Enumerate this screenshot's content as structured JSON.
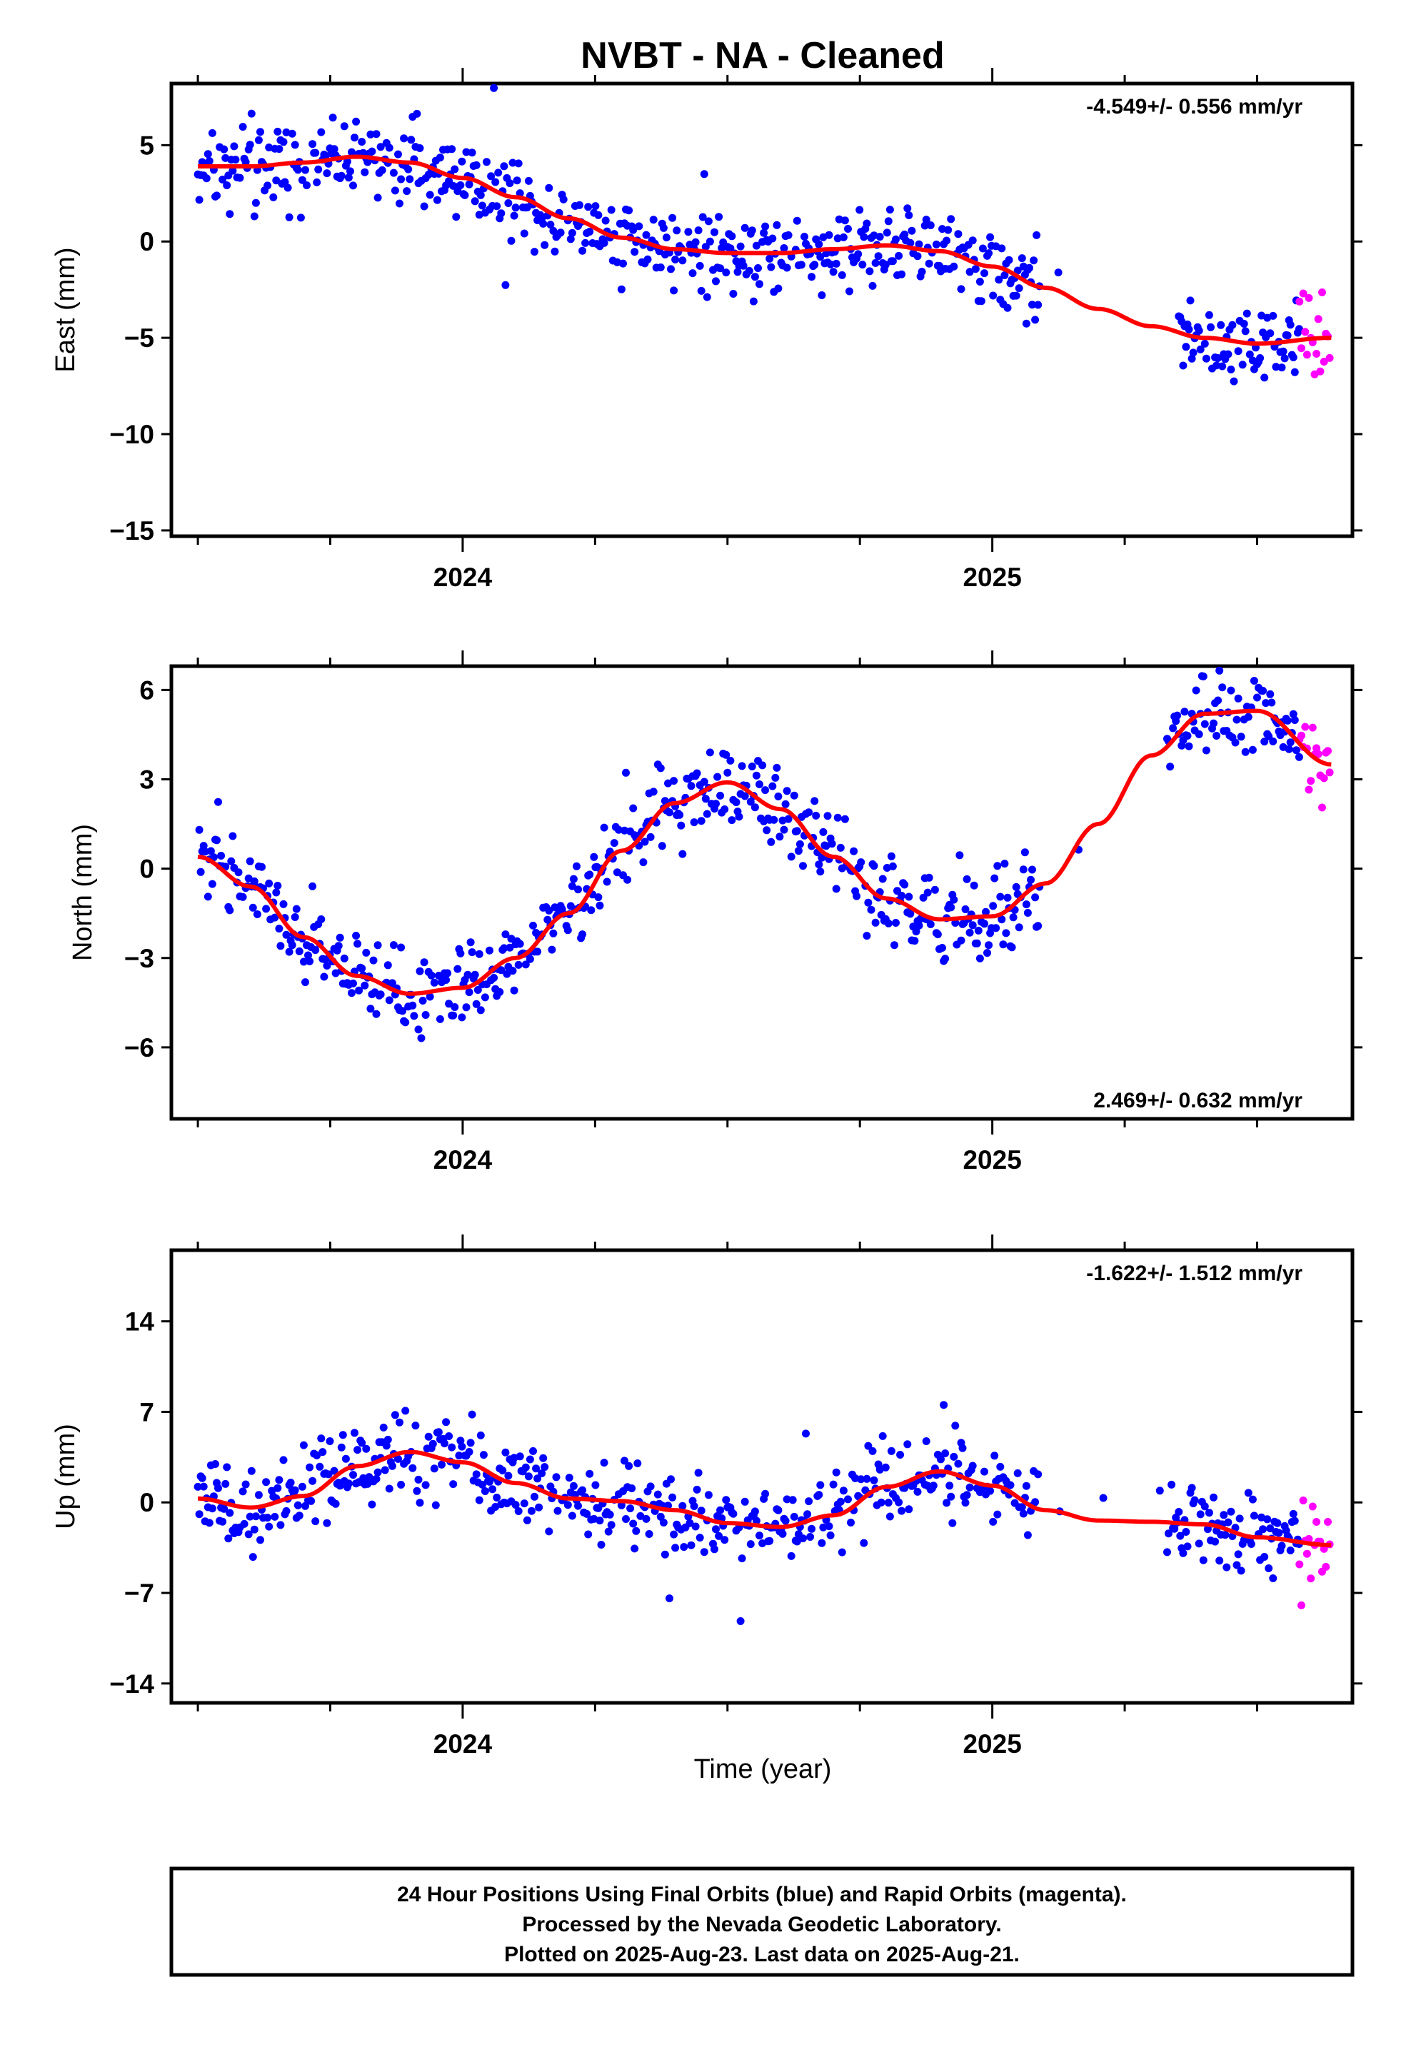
{
  "title": "NVBT  - NA - Cleaned",
  "xlabel": "Time (year)",
  "footer": {
    "line1": "24 Hour Positions Using Final Orbits (blue) and Rapid Orbits (magenta).",
    "line2": "Processed by the Nevada Geodetic Laboratory.",
    "line3": "Plotted on 2025-Aug-23. Last data on 2025-Aug-21."
  },
  "colors": {
    "final": "#0000ff",
    "rapid": "#ff00ff",
    "fit": "#ff0000",
    "frame": "#000000"
  },
  "chart_data": [
    {
      "type": "scatter",
      "name": "east",
      "ylabel": "East (mm)",
      "rate": "-4.549+/- 0.556 mm/yr",
      "rate_position": "top-right",
      "xlim": [
        2023.45,
        2025.68
      ],
      "ylim": [
        -15.3,
        8.2
      ],
      "yticks": [
        5,
        0,
        -5,
        -10,
        -15
      ],
      "ytick_labels": [
        "5",
        "0",
        "−5",
        "−10",
        "−15"
      ],
      "xticks": [
        2024,
        2025
      ],
      "xtick_labels": [
        "2024",
        "2025"
      ],
      "final_range": [
        2023.5,
        2025.58
      ],
      "rapid_range": [
        2025.58,
        2025.64
      ],
      "gaps": [
        [
          2025.09,
          2025.35
        ]
      ],
      "fit": {
        "x": [
          2023.5,
          2023.6,
          2023.7,
          2023.8,
          2023.9,
          2024.0,
          2024.1,
          2024.2,
          2024.3,
          2024.4,
          2024.5,
          2024.6,
          2024.7,
          2024.8,
          2024.9,
          2025.0,
          2025.1,
          2025.2,
          2025.3,
          2025.4,
          2025.5,
          2025.64
        ],
        "y": [
          3.9,
          3.9,
          4.1,
          4.4,
          4.1,
          3.3,
          2.3,
          1.2,
          0.2,
          -0.4,
          -0.6,
          -0.6,
          -0.4,
          -0.2,
          -0.5,
          -1.3,
          -2.4,
          -3.5,
          -4.4,
          -5.0,
          -5.3,
          -5.0
        ]
      }
    },
    {
      "type": "scatter",
      "name": "north",
      "ylabel": "North (mm)",
      "rate": "2.469+/- 0.632 mm/yr",
      "rate_position": "bottom-right",
      "xlim": [
        2023.45,
        2025.68
      ],
      "ylim": [
        -8.4,
        6.8
      ],
      "yticks": [
        6,
        3,
        0,
        -3,
        -6
      ],
      "ytick_labels": [
        "6",
        "3",
        "0",
        "−3",
        "−6"
      ],
      "xticks": [
        2024,
        2025
      ],
      "xtick_labels": [
        "2024",
        "2025"
      ],
      "final_range": [
        2023.5,
        2025.58
      ],
      "rapid_range": [
        2025.58,
        2025.64
      ],
      "gaps": [
        [
          2025.09,
          2025.33
        ]
      ],
      "fit": {
        "x": [
          2023.5,
          2023.6,
          2023.7,
          2023.8,
          2023.9,
          2024.0,
          2024.1,
          2024.2,
          2024.3,
          2024.4,
          2024.5,
          2024.6,
          2024.7,
          2024.8,
          2024.9,
          2025.0,
          2025.1,
          2025.2,
          2025.3,
          2025.4,
          2025.5,
          2025.64
        ],
        "y": [
          0.4,
          -0.6,
          -2.3,
          -3.6,
          -4.2,
          -4.0,
          -3.0,
          -1.5,
          0.6,
          2.2,
          2.9,
          2.0,
          0.4,
          -1.0,
          -1.7,
          -1.6,
          -0.5,
          1.5,
          3.8,
          5.2,
          5.3,
          3.5
        ]
      }
    },
    {
      "type": "scatter",
      "name": "up",
      "ylabel": "Up (mm)",
      "rate": "-1.622+/- 1.512 mm/yr",
      "rate_position": "top-right",
      "xlim": [
        2023.45,
        2025.68
      ],
      "ylim": [
        -15.5,
        19.5
      ],
      "yticks": [
        14,
        7,
        0,
        -7,
        -14
      ],
      "ytick_labels": [
        "14",
        "7",
        "0",
        "−7",
        "−14"
      ],
      "xticks": [
        2024,
        2025
      ],
      "xtick_labels": [
        "2024",
        "2025"
      ],
      "final_range": [
        2023.5,
        2025.58
      ],
      "rapid_range": [
        2025.58,
        2025.64
      ],
      "gaps": [
        [
          2025.09,
          2025.33
        ]
      ],
      "fit": {
        "x": [
          2023.5,
          2023.6,
          2023.7,
          2023.8,
          2023.9,
          2024.0,
          2024.1,
          2024.2,
          2024.3,
          2024.4,
          2024.5,
          2024.6,
          2024.7,
          2024.8,
          2024.9,
          2025.0,
          2025.1,
          2025.2,
          2025.3,
          2025.4,
          2025.5,
          2025.64
        ],
        "y": [
          0.3,
          -0.4,
          0.5,
          2.8,
          3.9,
          3.1,
          1.5,
          0.3,
          0.1,
          -0.6,
          -1.6,
          -1.9,
          -1.0,
          1.2,
          2.4,
          1.3,
          -0.6,
          -1.4,
          -1.5,
          -1.7,
          -2.7,
          -3.3
        ]
      }
    }
  ]
}
